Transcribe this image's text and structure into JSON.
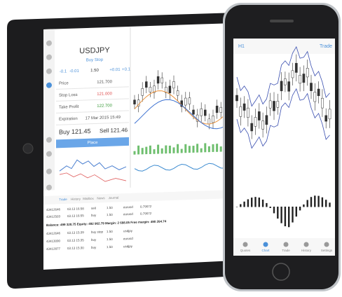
{
  "tablet": {
    "order": {
      "symbol": "USDJPY",
      "type": "Buy Stop",
      "steps": [
        "-0.1",
        "-0.01",
        "1.50",
        "+0.01",
        "+0.1"
      ],
      "fields": [
        {
          "label": "Price",
          "value": "121.700"
        },
        {
          "label": "Stop Loss",
          "value": "121.000"
        },
        {
          "label": "Take Profit",
          "value": "122.700"
        },
        {
          "label": "Expiration",
          "value": "17 Mar 2015 15:49"
        }
      ],
      "buy": "Buy 121.45",
      "sell": "Sell 121.46",
      "button": "Place"
    },
    "tabs": [
      "Trade",
      "History",
      "Mailbox",
      "News",
      "Journal"
    ],
    "table": {
      "rows": [
        [
          "43412646",
          "03.13 16:58",
          "sell",
          "1.50",
          "eurusd",
          "0.79072"
        ],
        [
          "43412503",
          "03.13 16:55",
          "buy",
          "1.50",
          "eurusd",
          "0.79072"
        ]
      ]
    },
    "balance": "Balance: 499 328.75 Equity: 492 962.79 Margin: 2 698.05 Free margin: 490 264.74",
    "more_rows": [
      [
        "43412646",
        "03.13 15:39",
        "buy stop",
        "1.50",
        "usdjpy"
      ],
      [
        "43413090",
        "03.13 15:35",
        "buy",
        "1.50",
        "eurusd"
      ],
      [
        "43412877",
        "03.13 15:30",
        "buy",
        "1.50",
        "usdjpy"
      ]
    ]
  },
  "phone": {
    "timeframe": "H1",
    "action": "Trade",
    "tabs": [
      "Quotes",
      "Chart",
      "Trade",
      "History",
      "Settings"
    ]
  }
}
